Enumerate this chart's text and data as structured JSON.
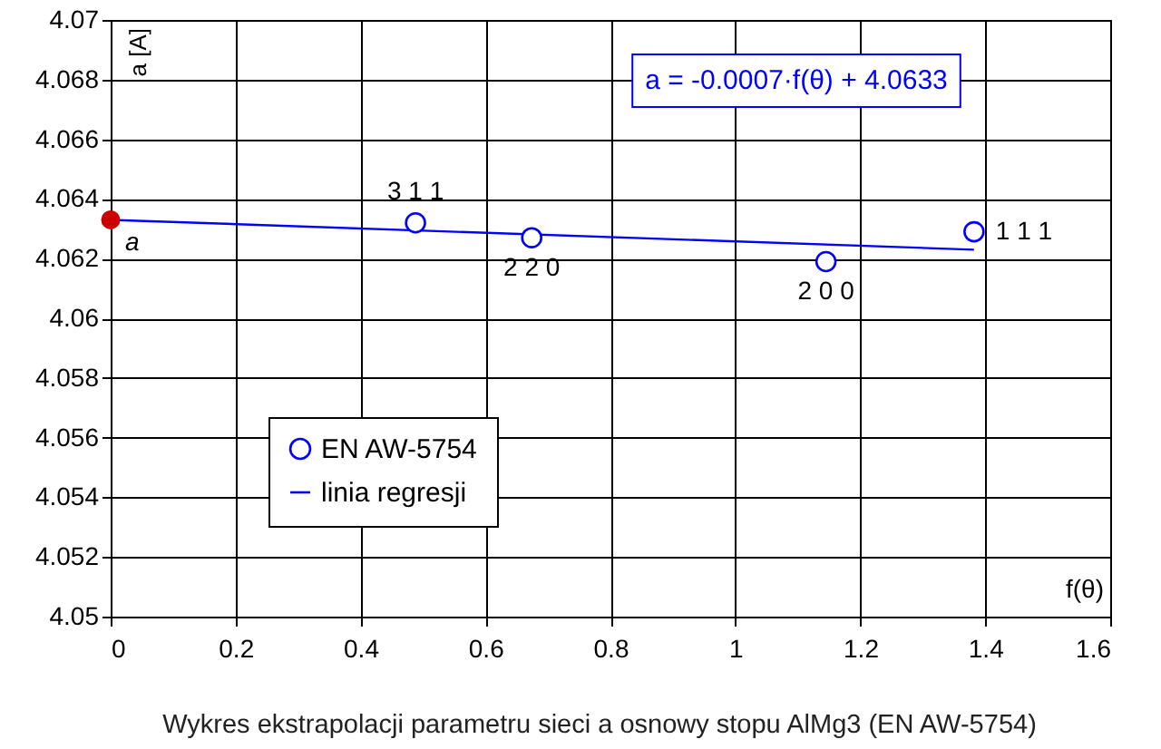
{
  "chart_data": {
    "type": "scatter",
    "xlabel": "f(θ)",
    "ylabel": "a [A]",
    "xlim": [
      0,
      1.6
    ],
    "xticks": [
      0,
      0.2,
      0.4,
      0.6,
      0.8,
      1,
      1.2,
      1.4,
      1.6
    ],
    "ylim": [
      4.05,
      4.07
    ],
    "yticks": [
      4.05,
      4.052,
      4.054,
      4.056,
      4.058,
      4.06,
      4.062,
      4.064,
      4.066,
      4.068,
      4.07
    ],
    "grid": true,
    "legend": "bottom left",
    "series": [
      {
        "name": "EN AW-5754",
        "marker": "circle",
        "color": "#0000ff",
        "x": [
          0.488,
          0.674,
          1.145,
          1.382
        ],
        "values": [
          4.0632,
          4.0627,
          4.0619,
          4.0629
        ]
      },
      {
        "name": "linia regresji",
        "type": "line",
        "marker": "none",
        "color": "#0000ff",
        "x": [
          0,
          1.382
        ],
        "values": [
          4.0633,
          4.0623
        ]
      },
      {
        "marker": "circle",
        "color": "#cc0000",
        "x": [
          0
        ],
        "values": [
          4.0633
        ]
      }
    ],
    "annotations": [
      "a = -0.0007·f(θ) + 4.0633",
      {
        "text": "3 1 1",
        "x": 0.488,
        "y": 4.0632
      },
      {
        "text": "2 2 0",
        "x": 0.674,
        "y": 4.0627
      },
      {
        "text": "2 0 0",
        "x": 1.145,
        "y": 4.0619
      },
      {
        "text": "1 1 1",
        "x": 1.382,
        "y": 4.0629
      },
      {
        "text": "a",
        "x": 0,
        "y": 4.0633
      },
      "Wykres ekstrapolacji parametru sieci a osnowy stopu AlMg3 (EN AW-5754)"
    ]
  }
}
